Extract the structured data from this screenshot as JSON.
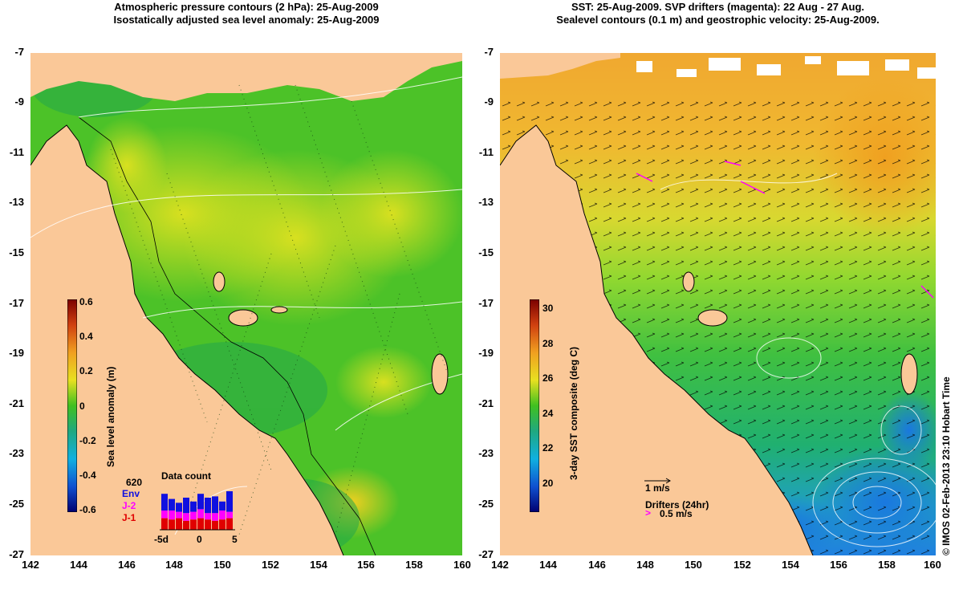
{
  "left_panel": {
    "title_line1": "Atmospheric pressure contours (2 hPa): 25-Aug-2009",
    "title_line2": "Isostatically adjusted sea level anomaly: 25-Aug-2009",
    "colorbar": {
      "label": "Sea level anomaly (m)",
      "ticks": [
        "0.6",
        "0.4",
        "0.2",
        "0",
        "-0.2",
        "-0.4",
        "-0.6"
      ]
    },
    "data_count": {
      "title": "Data count",
      "max_label": "620",
      "legend": [
        {
          "name": "Env",
          "color": "#1010e0"
        },
        {
          "name": "J-2",
          "color": "#ff00ff"
        },
        {
          "name": "J-1",
          "color": "#e00000"
        }
      ],
      "x_ticks": [
        "-5d",
        "0",
        "5"
      ]
    }
  },
  "right_panel": {
    "title_line1": "SST: 25-Aug-2009. SVP drifters (magenta): 22 Aug - 27 Aug.",
    "title_line2": "Sealevel contours (0.1 m) and geostrophic velocity: 25-Aug-2009.",
    "colorbar": {
      "label": "3-day SST composite (deg C)",
      "ticks": [
        "30",
        "28",
        "26",
        "24",
        "22",
        "20"
      ]
    },
    "velocity_scale": "1 m/s",
    "drifters_label": "Drifters (24hr)",
    "drifters_scale": "0.5 m/s"
  },
  "axes": {
    "y_ticks": [
      "-7",
      "-9",
      "-11",
      "-13",
      "-15",
      "-17",
      "-19",
      "-21",
      "-23",
      "-25",
      "-27"
    ],
    "x_ticks": [
      "142",
      "144",
      "146",
      "148",
      "150",
      "152",
      "154",
      "156",
      "158",
      "160"
    ]
  },
  "copyright": "© IMOS 02-Feb-2013 23:10 Hobart Time",
  "colors": {
    "land": "#fac898",
    "sla_ocean": "#44cc22",
    "sla_high": "#c8e020",
    "sst_warm": "#f0b030",
    "sst_mid": "#60d040",
    "sst_cool": "#20a0e0"
  }
}
